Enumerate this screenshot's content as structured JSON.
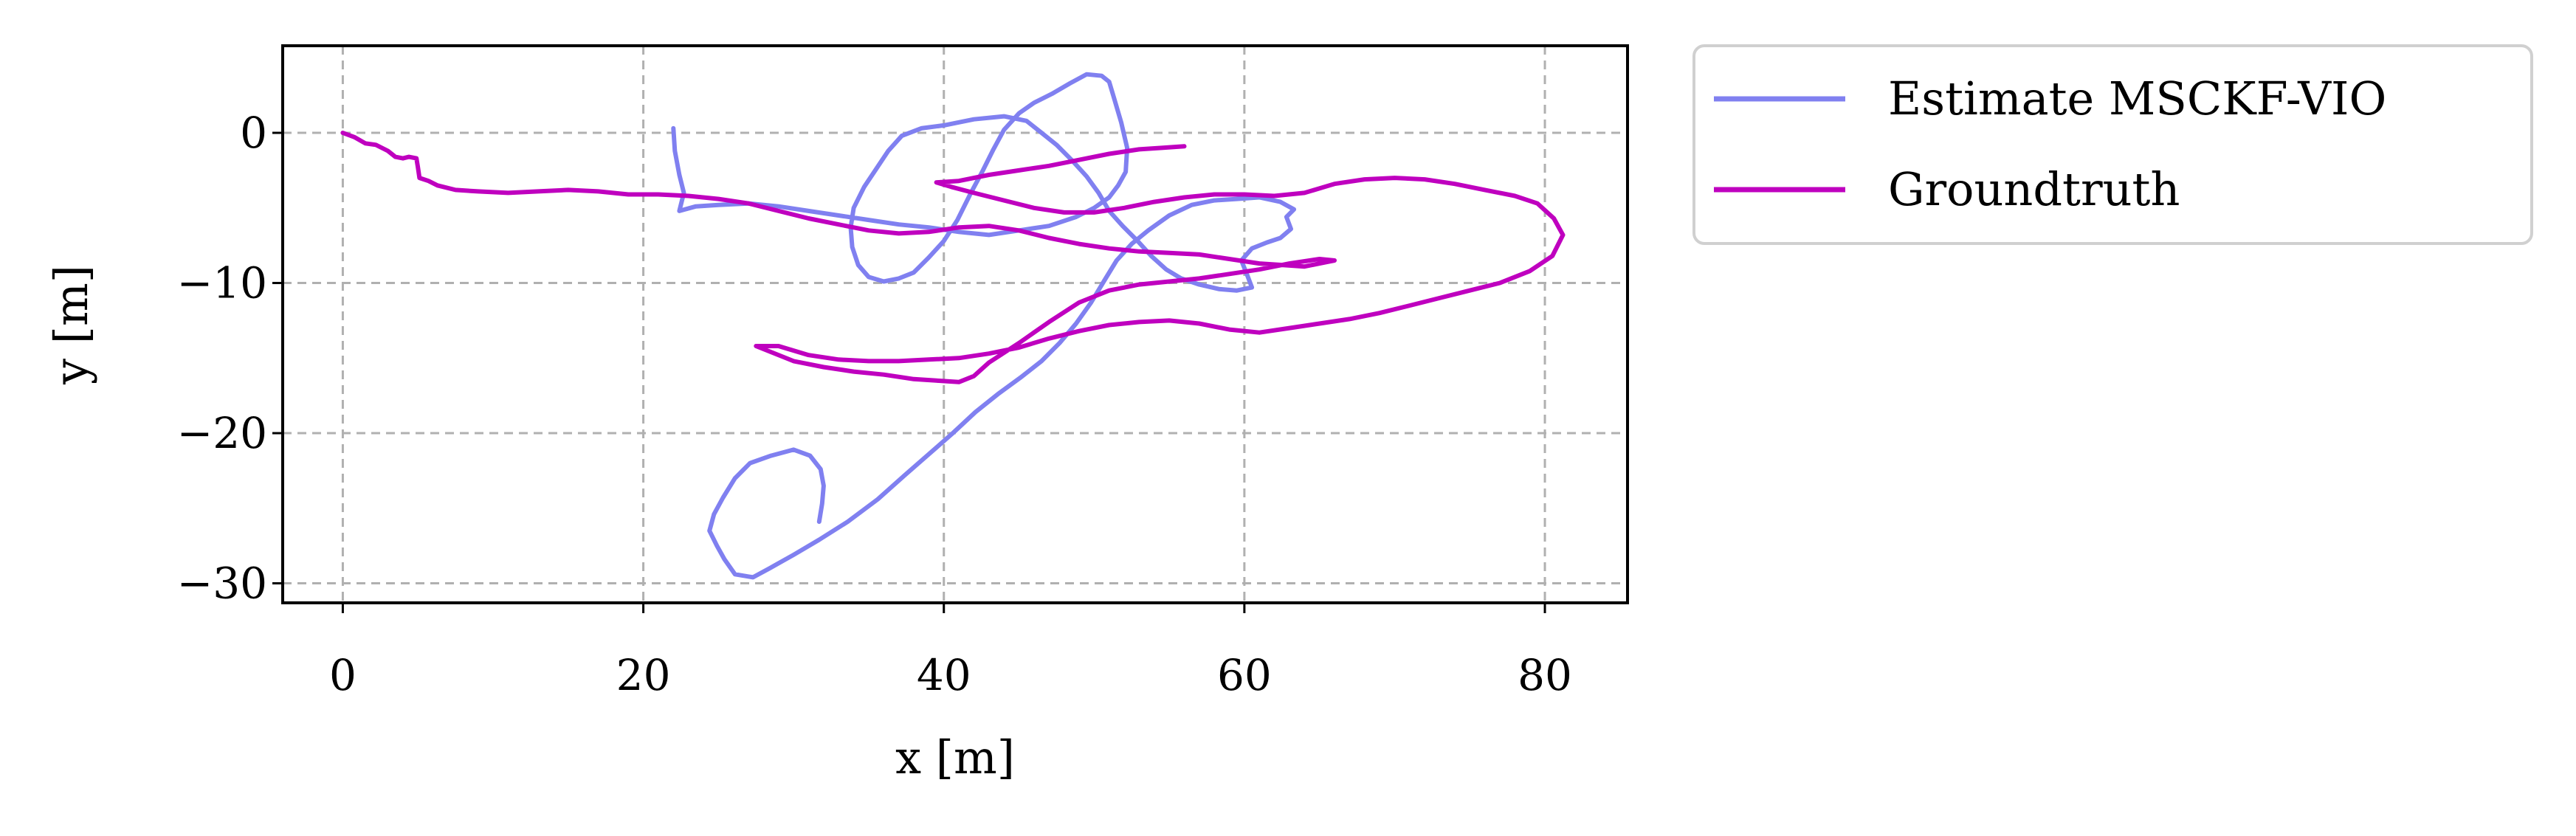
{
  "chart_data": {
    "type": "line",
    "title": "",
    "xlabel": "x [m]",
    "ylabel": "y [m]",
    "xlim": [
      -4,
      85.5
    ],
    "ylim": [
      -31.3,
      5.8
    ],
    "xticks": [
      0,
      20,
      40,
      60,
      80
    ],
    "xtick_labels": [
      "0",
      "20",
      "40",
      "60",
      "80"
    ],
    "yticks": [
      0,
      -10,
      -20,
      -30
    ],
    "ytick_labels": [
      "0",
      "−10",
      "−20",
      "−30"
    ],
    "grid": true,
    "legend_position": "outside-top-right",
    "series": [
      {
        "name": "Estimate MSCKF-VIO",
        "color": "#8080f0",
        "points": [
          [
            22,
            0.3
          ],
          [
            22.1,
            -1.2
          ],
          [
            22.4,
            -2.8
          ],
          [
            22.7,
            -4
          ],
          [
            22.4,
            -5.2
          ],
          [
            23.5,
            -4.9
          ],
          [
            25,
            -4.8
          ],
          [
            27,
            -4.7
          ],
          [
            29,
            -4.9
          ],
          [
            31,
            -5.2
          ],
          [
            33,
            -5.5
          ],
          [
            35,
            -5.8
          ],
          [
            37,
            -6.1
          ],
          [
            39,
            -6.3
          ],
          [
            41,
            -6.6
          ],
          [
            43,
            -6.8
          ],
          [
            45,
            -6.5
          ],
          [
            47,
            -6.2
          ],
          [
            48.8,
            -5.6
          ],
          [
            50,
            -5
          ],
          [
            51,
            -4.3
          ],
          [
            51.6,
            -3.5
          ],
          [
            52.1,
            -2.6
          ],
          [
            52.2,
            -1
          ],
          [
            51.8,
            0.7
          ],
          [
            51.3,
            2.4
          ],
          [
            51,
            3.4
          ],
          [
            50.5,
            3.8
          ],
          [
            49.5,
            3.9
          ],
          [
            48.4,
            3.3
          ],
          [
            47.2,
            2.6
          ],
          [
            46,
            2
          ],
          [
            45,
            1.3
          ],
          [
            44,
            0.2
          ],
          [
            43.3,
            -1.1
          ],
          [
            42.6,
            -2.5
          ],
          [
            41.8,
            -4
          ],
          [
            40.9,
            -5.8
          ],
          [
            40,
            -7.2
          ],
          [
            39,
            -8.3
          ],
          [
            38,
            -9.3
          ],
          [
            37,
            -9.7
          ],
          [
            36,
            -9.9
          ],
          [
            35,
            -9.6
          ],
          [
            34.3,
            -8.8
          ],
          [
            33.9,
            -7.6
          ],
          [
            33.8,
            -6.3
          ],
          [
            34,
            -5
          ],
          [
            34.7,
            -3.6
          ],
          [
            35.5,
            -2.4
          ],
          [
            36.3,
            -1.2
          ],
          [
            37.2,
            -0.2
          ],
          [
            38.5,
            0.3
          ],
          [
            40,
            0.5
          ],
          [
            42,
            0.9
          ],
          [
            44,
            1.1
          ],
          [
            45.5,
            0.8
          ],
          [
            46.5,
            0
          ],
          [
            47.5,
            -0.8
          ],
          [
            48.5,
            -1.8
          ],
          [
            49.5,
            -2.9
          ],
          [
            50.3,
            -4
          ],
          [
            51,
            -5.2
          ],
          [
            51.9,
            -6.2
          ],
          [
            52.9,
            -7.2
          ],
          [
            53.8,
            -8.2
          ],
          [
            54.8,
            -9.1
          ],
          [
            55.8,
            -9.7
          ],
          [
            57,
            -10.1
          ],
          [
            58.3,
            -10.4
          ],
          [
            59.5,
            -10.5
          ],
          [
            60.5,
            -10.3
          ],
          [
            60.2,
            -9.5
          ],
          [
            59.8,
            -8.5
          ],
          [
            60.5,
            -7.7
          ],
          [
            61.5,
            -7.3
          ],
          [
            62.4,
            -7
          ],
          [
            63.1,
            -6.4
          ],
          [
            62.8,
            -5.6
          ],
          [
            63.3,
            -5.1
          ],
          [
            62.4,
            -4.6
          ],
          [
            61,
            -4.3
          ],
          [
            59.5,
            -4.4
          ],
          [
            58,
            -4.5
          ],
          [
            56.5,
            -4.8
          ],
          [
            55,
            -5.5
          ],
          [
            53.6,
            -6.5
          ],
          [
            52.5,
            -7.4
          ],
          [
            51.5,
            -8.5
          ],
          [
            50.7,
            -9.8
          ],
          [
            49.8,
            -11.3
          ],
          [
            48.8,
            -12.7
          ],
          [
            47.7,
            -14
          ],
          [
            46.5,
            -15.2
          ],
          [
            45.1,
            -16.3
          ],
          [
            43.6,
            -17.4
          ],
          [
            42.1,
            -18.6
          ],
          [
            40.6,
            -20
          ],
          [
            39,
            -21.4
          ],
          [
            37.4,
            -22.8
          ],
          [
            35.6,
            -24.4
          ],
          [
            33.6,
            -25.9
          ],
          [
            31.7,
            -27.1
          ],
          [
            30,
            -28.1
          ],
          [
            28.4,
            -29
          ],
          [
            27.3,
            -29.6
          ],
          [
            26.1,
            -29.4
          ],
          [
            25.4,
            -28.4
          ],
          [
            24.9,
            -27.5
          ],
          [
            24.4,
            -26.5
          ],
          [
            24.7,
            -25.4
          ],
          [
            25.3,
            -24.3
          ],
          [
            26.1,
            -23
          ],
          [
            27.1,
            -22
          ],
          [
            28.5,
            -21.5
          ],
          [
            30,
            -21.1
          ],
          [
            31.1,
            -21.5
          ],
          [
            31.8,
            -22.4
          ],
          [
            32,
            -23.5
          ],
          [
            31.9,
            -24.7
          ],
          [
            31.7,
            -25.9
          ]
        ]
      },
      {
        "name": "Groundtruth",
        "color": "#bf00bf",
        "points": [
          [
            0,
            0
          ],
          [
            0.8,
            -0.3
          ],
          [
            1.5,
            -0.7
          ],
          [
            2.2,
            -0.8
          ],
          [
            3,
            -1.2
          ],
          [
            3.5,
            -1.6
          ],
          [
            4,
            -1.7
          ],
          [
            4.4,
            -1.6
          ],
          [
            4.9,
            -1.7
          ],
          [
            5,
            -2.3
          ],
          [
            5.1,
            -3
          ],
          [
            5.7,
            -3.2
          ],
          [
            6.3,
            -3.5
          ],
          [
            7.5,
            -3.8
          ],
          [
            9,
            -3.9
          ],
          [
            11,
            -4
          ],
          [
            13,
            -3.9
          ],
          [
            15,
            -3.8
          ],
          [
            17,
            -3.9
          ],
          [
            19,
            -4.1
          ],
          [
            21,
            -4.1
          ],
          [
            23,
            -4.2
          ],
          [
            25,
            -4.4
          ],
          [
            27,
            -4.7
          ],
          [
            29,
            -5.2
          ],
          [
            31,
            -5.7
          ],
          [
            33,
            -6.1
          ],
          [
            35,
            -6.5
          ],
          [
            37,
            -6.7
          ],
          [
            39,
            -6.6
          ],
          [
            41,
            -6.3
          ],
          [
            43,
            -6.2
          ],
          [
            45,
            -6.5
          ],
          [
            47,
            -7
          ],
          [
            49,
            -7.4
          ],
          [
            51,
            -7.7
          ],
          [
            53,
            -7.9
          ],
          [
            55,
            -8
          ],
          [
            57,
            -8.1
          ],
          [
            59,
            -8.4
          ],
          [
            61,
            -8.7
          ],
          [
            62.5,
            -8.8
          ],
          [
            64,
            -8.9
          ],
          [
            65.5,
            -8.6
          ],
          [
            66,
            -8.5
          ],
          [
            65,
            -8.4
          ],
          [
            63,
            -8.7
          ],
          [
            61,
            -9.1
          ],
          [
            59,
            -9.4
          ],
          [
            57,
            -9.7
          ],
          [
            55,
            -9.9
          ],
          [
            53,
            -10.1
          ],
          [
            51,
            -10.5
          ],
          [
            49,
            -11.3
          ],
          [
            47,
            -12.6
          ],
          [
            45,
            -14
          ],
          [
            43,
            -15.3
          ],
          [
            42,
            -16.2
          ],
          [
            41,
            -16.6
          ],
          [
            39.5,
            -16.5
          ],
          [
            38,
            -16.4
          ],
          [
            36,
            -16.1
          ],
          [
            34,
            -15.9
          ],
          [
            32,
            -15.6
          ],
          [
            30,
            -15.2
          ],
          [
            28.5,
            -14.6
          ],
          [
            27.5,
            -14.2
          ],
          [
            29,
            -14.2
          ],
          [
            31,
            -14.8
          ],
          [
            33,
            -15.1
          ],
          [
            35,
            -15.2
          ],
          [
            37,
            -15.2
          ],
          [
            39,
            -15.1
          ],
          [
            41,
            -15
          ],
          [
            43,
            -14.7
          ],
          [
            45,
            -14.3
          ],
          [
            47,
            -13.7
          ],
          [
            49,
            -13.2
          ],
          [
            51,
            -12.8
          ],
          [
            53,
            -12.6
          ],
          [
            55,
            -12.5
          ],
          [
            57,
            -12.7
          ],
          [
            59,
            -13.1
          ],
          [
            61,
            -13.3
          ],
          [
            63,
            -13
          ],
          [
            65,
            -12.7
          ],
          [
            67,
            -12.4
          ],
          [
            69,
            -12
          ],
          [
            71,
            -11.5
          ],
          [
            73,
            -11
          ],
          [
            75,
            -10.5
          ],
          [
            77,
            -10
          ],
          [
            79,
            -9.2
          ],
          [
            80.5,
            -8.2
          ],
          [
            81.2,
            -6.8
          ],
          [
            80.6,
            -5.7
          ],
          [
            79.5,
            -4.7
          ],
          [
            78,
            -4.2
          ],
          [
            76,
            -3.8
          ],
          [
            74,
            -3.4
          ],
          [
            72,
            -3.1
          ],
          [
            70,
            -3
          ],
          [
            68,
            -3.1
          ],
          [
            66,
            -3.4
          ],
          [
            64,
            -4
          ],
          [
            62,
            -4.2
          ],
          [
            60,
            -4.1
          ],
          [
            58,
            -4.1
          ],
          [
            56,
            -4.3
          ],
          [
            54,
            -4.6
          ],
          [
            52,
            -5
          ],
          [
            50,
            -5.3
          ],
          [
            48,
            -5.3
          ],
          [
            46,
            -5
          ],
          [
            44,
            -4.5
          ],
          [
            42,
            -4
          ],
          [
            40.5,
            -3.6
          ],
          [
            39.5,
            -3.3
          ],
          [
            41,
            -3.2
          ],
          [
            43,
            -2.8
          ],
          [
            45,
            -2.5
          ],
          [
            47,
            -2.2
          ],
          [
            49,
            -1.8
          ],
          [
            51,
            -1.4
          ],
          [
            53,
            -1.1
          ],
          [
            54.5,
            -1
          ],
          [
            56,
            -0.9
          ]
        ]
      }
    ]
  }
}
